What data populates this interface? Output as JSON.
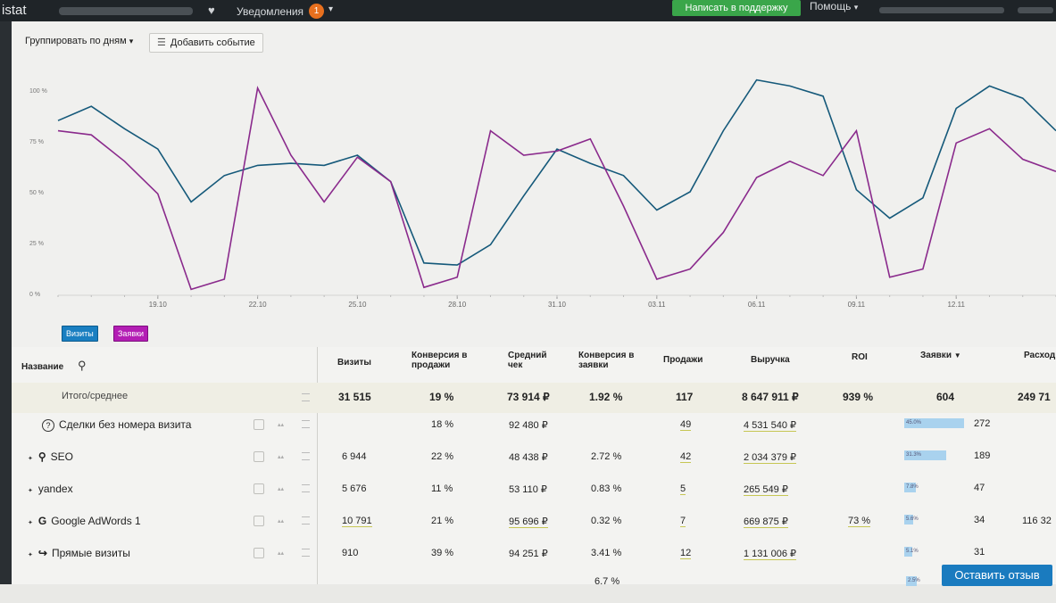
{
  "topbar": {
    "logo": "istat",
    "notifications_label": "Уведомления",
    "notifications_count": "1",
    "support_button": "Написать в поддержку",
    "help_label": "Помощь"
  },
  "toolbar": {
    "group_by": "Группировать по дням",
    "add_event": "Добавить событие"
  },
  "chart_data": {
    "type": "line",
    "y_ticks": [
      "100 %",
      "75 %",
      "50 %",
      "25 %",
      "0 %"
    ],
    "ylim": [
      0,
      100
    ],
    "x_ticks": [
      "19.10",
      "22.10",
      "25.10",
      "28.10",
      "31.10",
      "03.11",
      "06.11",
      "09.11",
      "12.11"
    ],
    "x_tick_index": [
      3,
      6,
      9,
      12,
      15,
      18,
      21,
      24,
      27
    ],
    "x_count": 31,
    "series": [
      {
        "name": "Визиты",
        "color": "#15597a",
        "values": [
          85,
          92,
          81,
          71,
          45,
          58,
          63,
          64,
          63,
          68,
          55,
          15,
          14,
          24,
          48,
          71,
          64,
          58,
          41,
          50,
          80,
          105,
          102,
          97,
          51,
          37,
          47,
          91,
          102,
          96,
          80
        ]
      },
      {
        "name": "Заявки",
        "color": "#8a2a8c",
        "values": [
          80,
          78,
          65,
          49,
          2,
          7,
          101,
          68,
          45,
          67,
          55,
          3,
          8,
          80,
          68,
          70,
          76,
          43,
          7,
          12,
          30,
          57,
          65,
          58,
          80,
          8,
          12,
          74,
          81,
          66,
          60
        ]
      }
    ]
  },
  "legend": {
    "visits": "Визиты",
    "leads": "Заявки"
  },
  "table": {
    "headers": {
      "name": "Название",
      "visits": "Визиты",
      "conv_sales_1": "Конверсия в",
      "conv_sales_2": "продажи",
      "avg_check_1": "Средний",
      "avg_check_2": "чек",
      "conv_leads_1": "Конверсия в",
      "conv_leads_2": "заявки",
      "sales": "Продажи",
      "revenue": "Выручка",
      "roi": "ROI",
      "leads": "Заявки",
      "expenses": "Расход"
    },
    "total": {
      "name": "Итого/среднее",
      "visits": "31 515",
      "conv_sales": "19 %",
      "avg_check": "73 914 ₽",
      "conv_leads": "1.92 %",
      "sales": "117",
      "revenue": "8 647 911 ₽",
      "roi": "939 %",
      "leads": "604",
      "expenses": "249 71"
    },
    "rows": [
      {
        "name": "Сделки без номера визита",
        "icon": "question-circle-icon",
        "visits": "",
        "conv_sales": "18 %",
        "avg_check": "92 480 ₽",
        "conv_leads": "",
        "sales": "49",
        "revenue": "4 531 540 ₽",
        "roi": "",
        "leads_pct": "45.0%",
        "leads_share": 0.45,
        "leads": "272",
        "expenses": ""
      },
      {
        "name": "SEO",
        "icon": "search-icon",
        "visits": "6 944",
        "conv_sales": "22 %",
        "avg_check": "48 438 ₽",
        "conv_leads": "2.72 %",
        "sales": "42",
        "revenue": "2 034 379 ₽",
        "roi": "",
        "leads_pct": "31.3%",
        "leads_share": 0.313,
        "leads": "189",
        "expenses": ""
      },
      {
        "name": "yandex",
        "icon": "",
        "visits": "5 676",
        "conv_sales": "11 %",
        "avg_check": "53 110 ₽",
        "conv_leads": "0.83 %",
        "sales": "5",
        "revenue": "265 549 ₽",
        "roi": "",
        "leads_pct": "7.8%",
        "leads_share": 0.078,
        "leads": "47",
        "expenses": ""
      },
      {
        "name": "Google AdWords 1",
        "icon": "google-icon",
        "visits": "10 791",
        "conv_sales": "21 %",
        "avg_check": "95 696 ₽",
        "conv_leads": "0.32 %",
        "sales": "7",
        "revenue": "669 875 ₽",
        "roi": "73 %",
        "leads_pct": "5.6%",
        "leads_share": 0.056,
        "leads": "34",
        "expenses": "116 32"
      },
      {
        "name": "Прямые визиты",
        "icon": "direct-arrow-icon",
        "visits": "910",
        "conv_sales": "39 %",
        "avg_check": "94 251 ₽",
        "conv_leads": "3.41 %",
        "sales": "12",
        "revenue": "1 131 006 ₽",
        "roi": "",
        "leads_pct": "5.1%",
        "leads_share": 0.051,
        "leads": "31",
        "expenses": ""
      }
    ],
    "partial_row": {
      "conv_leads": "6.7 %",
      "leads_pct": "2.5%"
    }
  },
  "feedback_button": "Оставить отзыв"
}
